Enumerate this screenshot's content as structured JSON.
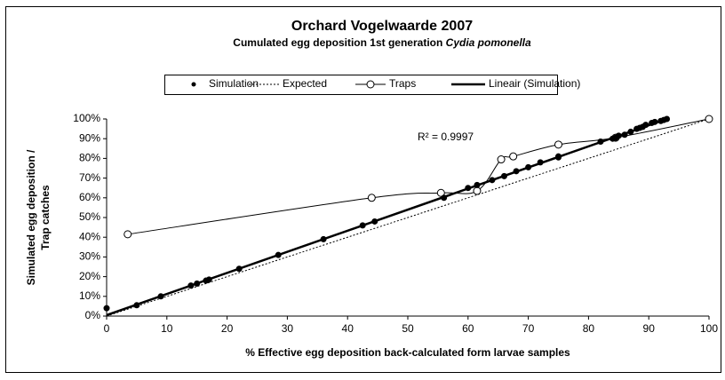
{
  "chart_data": {
    "type": "scatter",
    "title": "Orchard Vogelwaarde 2007",
    "subtitle": "Cumulated egg deposition 1st generation",
    "subtitle_species": "Cydia pomonella",
    "xlabel": "% Effective egg deposition back-calculated form larvae samples",
    "ylabel": [
      "Simulated egg deposition /",
      "Trap catches"
    ],
    "annotation": "R² = 0.9997",
    "xlim": [
      0,
      100
    ],
    "xticks": [
      0,
      10,
      20,
      30,
      40,
      50,
      60,
      70,
      80,
      90,
      100
    ],
    "ylim": [
      0,
      100
    ],
    "yticks": [
      {
        "value": 0,
        "label": "0%"
      },
      {
        "value": 10,
        "label": "10%"
      },
      {
        "value": 20,
        "label": "20%"
      },
      {
        "value": 30,
        "label": "30%"
      },
      {
        "value": 40,
        "label": "40%"
      },
      {
        "value": 50,
        "label": "50%"
      },
      {
        "value": 60,
        "label": "60%"
      },
      {
        "value": 70,
        "label": "70%"
      },
      {
        "value": 80,
        "label": "80%"
      },
      {
        "value": 90,
        "label": "90%"
      },
      {
        "value": 100,
        "label": "100%"
      }
    ],
    "series": [
      {
        "name": "Simulation",
        "style": "markers",
        "color": "#000000",
        "x": [
          0,
          5,
          9,
          14,
          15,
          16.5,
          17,
          22,
          28.5,
          36,
          42.5,
          44.5,
          56,
          60,
          61.5,
          64,
          66,
          68,
          70,
          72,
          75,
          75,
          82,
          84,
          84.5,
          85,
          86,
          87,
          88,
          88.5,
          89,
          89.5,
          90.5,
          91,
          92,
          92.5,
          93
        ],
        "values": [
          4,
          5.5,
          10,
          15.5,
          16.5,
          18,
          18.5,
          24,
          31,
          39,
          46,
          48,
          60,
          65,
          66.5,
          69,
          71,
          73.5,
          75.5,
          78,
          80.5,
          81,
          88.5,
          90,
          90.5,
          91.5,
          92,
          93.5,
          95,
          95.5,
          96,
          97,
          98,
          98.5,
          99,
          99.5,
          100
        ]
      },
      {
        "name": "Expected",
        "style": "dotted",
        "color": "#000000",
        "x": [
          0,
          100
        ],
        "values": [
          0,
          100
        ]
      },
      {
        "name": "Traps",
        "style": "line-markers",
        "color": "#000000",
        "x": [
          3.5,
          44,
          55.5,
          61.5,
          65.5,
          67.5,
          75,
          84.5,
          100
        ],
        "values": [
          41.5,
          60,
          62.5,
          63.5,
          79.5,
          81,
          87,
          90.5,
          100
        ]
      },
      {
        "name": "Lineair (Simulation)",
        "style": "thick",
        "color": "#000000",
        "x": [
          0,
          93
        ],
        "values": [
          0.5,
          100
        ]
      }
    ]
  }
}
